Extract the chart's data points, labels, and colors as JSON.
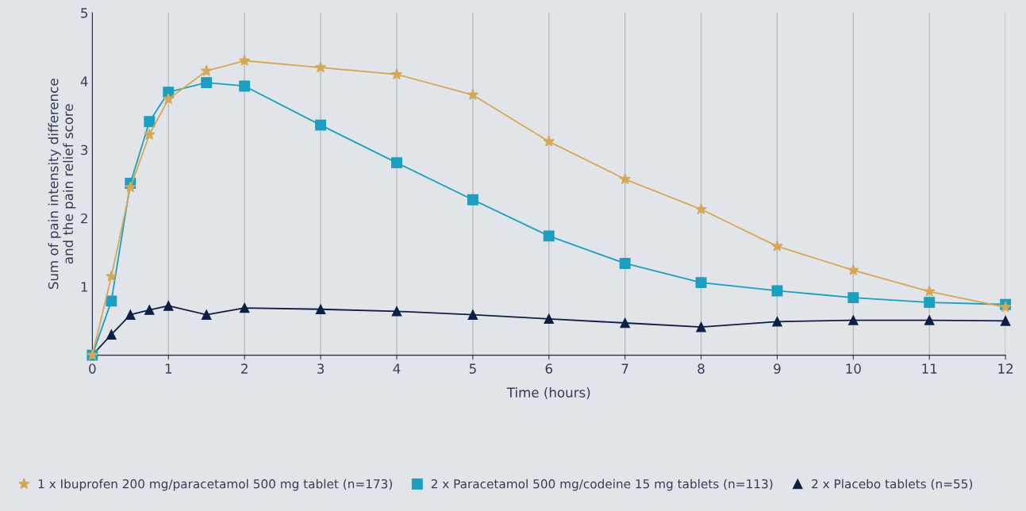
{
  "chart_data": {
    "type": "line",
    "xlabel": "Time (hours)",
    "ylabel": "Sum of pain intensity difference\nand the pain relief score",
    "xlim": [
      0,
      12
    ],
    "xticks": [
      0,
      1,
      2,
      3,
      4,
      5,
      6,
      7,
      8,
      9,
      10,
      11,
      12
    ],
    "ylim": [
      0,
      5
    ],
    "yticks": [
      1,
      2,
      3,
      4,
      5
    ],
    "grid": "x",
    "legend": "bottom",
    "series": [
      {
        "name": "1 x Ibuprofen 200 mg/paracetamol 500 mg tablet (n=173)",
        "color": "#d4a855",
        "marker": "star",
        "x": [
          0,
          0.25,
          0.5,
          0.75,
          1,
          1.5,
          2,
          3,
          4,
          5,
          6,
          7,
          8,
          9,
          10,
          11,
          12
        ],
        "values": [
          0,
          1.15,
          2.45,
          3.22,
          3.74,
          4.15,
          4.3,
          4.2,
          4.1,
          3.8,
          3.12,
          2.57,
          2.13,
          1.59,
          1.24,
          0.93,
          0.7
        ]
      },
      {
        "name": "2 x Paracetamol 500 mg/codeine 15 mg tablets (n=113)",
        "color": "#1a9fc0",
        "marker": "square",
        "x": [
          0,
          0.25,
          0.5,
          0.75,
          1,
          1.5,
          2,
          3,
          4,
          5,
          6,
          7,
          8,
          9,
          10,
          11,
          12
        ],
        "values": [
          0,
          0.79,
          2.51,
          3.41,
          3.84,
          3.98,
          3.93,
          3.36,
          2.81,
          2.27,
          1.74,
          1.34,
          1.06,
          0.94,
          0.84,
          0.77,
          0.74
        ]
      },
      {
        "name": "2 x Placebo tablets (n=55)",
        "color": "#0d1f45",
        "marker": "triangle",
        "x": [
          0,
          0.25,
          0.5,
          0.75,
          1,
          1.5,
          2,
          3,
          4,
          5,
          6,
          7,
          8,
          9,
          10,
          11,
          12
        ],
        "values": [
          0,
          0.3,
          0.59,
          0.66,
          0.72,
          0.59,
          0.69,
          0.67,
          0.64,
          0.59,
          0.53,
          0.47,
          0.41,
          0.49,
          0.51,
          0.51,
          0.5
        ]
      }
    ]
  }
}
